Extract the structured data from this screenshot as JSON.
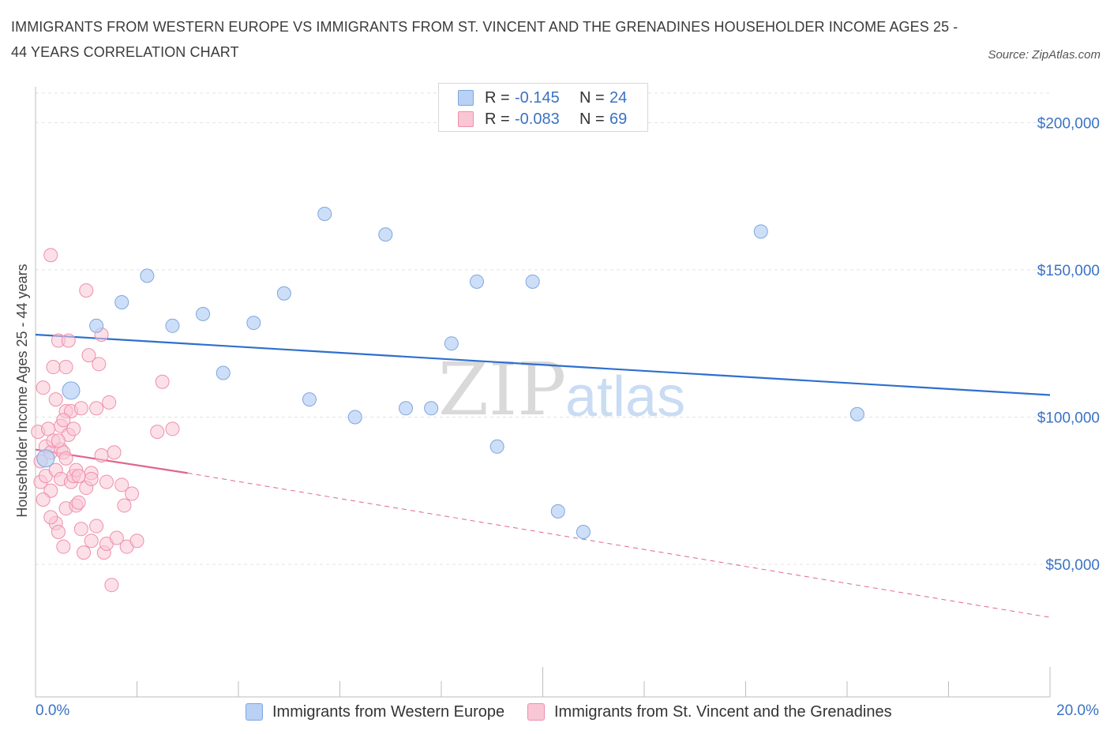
{
  "title": "IMMIGRANTS FROM WESTERN EUROPE VS IMMIGRANTS FROM ST. VINCENT AND THE GRENADINES HOUSEHOLDER INCOME AGES 25 - 44 YEARS CORRELATION CHART",
  "source": "Source: ZipAtlas.com",
  "watermark": {
    "zip": "ZIP",
    "atlas": "atlas"
  },
  "legend": {
    "rows": [
      {
        "r_label": "R =",
        "r_value": "-0.145",
        "n_label": "N =",
        "n_value": "24"
      },
      {
        "r_label": "R =",
        "r_value": "-0.083",
        "n_label": "N =",
        "n_value": "69"
      }
    ]
  },
  "colors": {
    "blue_fill": "#b8d1f5",
    "blue_stroke": "#7ea6dd",
    "blue_line": "#2e6fce",
    "pink_fill": "#f9c6d6",
    "pink_stroke": "#ee8fad",
    "pink_line": "#e06690",
    "axis_text": "#3a72c4",
    "grid": "#e3e3e3"
  },
  "chart_data": {
    "type": "scatter",
    "xlabel": "",
    "ylabel": "Householder Income Ages 25 - 44 years",
    "xlim": [
      0,
      20
    ],
    "ylim": [
      5000,
      210000
    ],
    "x_tick_labels": {
      "min": "0.0%",
      "max": "20.0%"
    },
    "y_ticks": [
      {
        "value": 50000,
        "label": "$50,000"
      },
      {
        "value": 100000,
        "label": "$100,000"
      },
      {
        "value": 150000,
        "label": "$150,000"
      },
      {
        "value": 200000,
        "label": "$200,000"
      }
    ],
    "grid": true,
    "series": [
      {
        "name": "Immigrants from Western Europe",
        "color": "blue",
        "points": [
          [
            0.2,
            86000
          ],
          [
            0.7,
            109000
          ],
          [
            1.2,
            131000
          ],
          [
            1.7,
            139000
          ],
          [
            2.2,
            148000
          ],
          [
            2.7,
            131000
          ],
          [
            3.3,
            135000
          ],
          [
            3.7,
            115000
          ],
          [
            4.3,
            132000
          ],
          [
            4.9,
            142000
          ],
          [
            5.4,
            106000
          ],
          [
            5.7,
            169000
          ],
          [
            6.3,
            100000
          ],
          [
            6.9,
            162000
          ],
          [
            7.3,
            103000
          ],
          [
            7.8,
            103000
          ],
          [
            8.2,
            125000
          ],
          [
            8.7,
            146000
          ],
          [
            9.1,
            90000
          ],
          [
            9.8,
            146000
          ],
          [
            10.3,
            68000
          ],
          [
            10.8,
            61000
          ],
          [
            14.3,
            163000
          ],
          [
            16.2,
            101000
          ]
        ],
        "trend": {
          "x": [
            0,
            20
          ],
          "y": [
            128000,
            107500
          ],
          "style": "solid"
        }
      },
      {
        "name": "Immigrants from St. Vincent and the Grenadines",
        "color": "pink",
        "points": [
          [
            0.05,
            95000
          ],
          [
            0.1,
            85000
          ],
          [
            0.1,
            78000
          ],
          [
            0.15,
            110000
          ],
          [
            0.2,
            90000
          ],
          [
            0.2,
            80000
          ],
          [
            0.25,
            96000
          ],
          [
            0.3,
            88000
          ],
          [
            0.3,
            75000
          ],
          [
            0.3,
            155000
          ],
          [
            0.35,
            117000
          ],
          [
            0.35,
            92000
          ],
          [
            0.4,
            82000
          ],
          [
            0.4,
            64000
          ],
          [
            0.4,
            106000
          ],
          [
            0.45,
            61000
          ],
          [
            0.45,
            126000
          ],
          [
            0.5,
            89000
          ],
          [
            0.5,
            97000
          ],
          [
            0.5,
            79000
          ],
          [
            0.55,
            88000
          ],
          [
            0.55,
            56000
          ],
          [
            0.6,
            117000
          ],
          [
            0.6,
            69000
          ],
          [
            0.6,
            86000
          ],
          [
            0.6,
            102000
          ],
          [
            0.65,
            94000
          ],
          [
            0.65,
            126000
          ],
          [
            0.7,
            78000
          ],
          [
            0.7,
            102000
          ],
          [
            0.75,
            96000
          ],
          [
            0.75,
            80000
          ],
          [
            0.8,
            70000
          ],
          [
            0.8,
            82000
          ],
          [
            0.85,
            71000
          ],
          [
            0.85,
            80000
          ],
          [
            0.9,
            62000
          ],
          [
            0.9,
            103000
          ],
          [
            0.95,
            54000
          ],
          [
            1.0,
            76000
          ],
          [
            1.0,
            143000
          ],
          [
            1.05,
            121000
          ],
          [
            1.1,
            81000
          ],
          [
            1.1,
            58000
          ],
          [
            1.1,
            79000
          ],
          [
            1.2,
            63000
          ],
          [
            1.2,
            103000
          ],
          [
            1.25,
            118000
          ],
          [
            1.3,
            87000
          ],
          [
            1.3,
            128000
          ],
          [
            1.35,
            54000
          ],
          [
            1.4,
            78000
          ],
          [
            1.4,
            57000
          ],
          [
            1.45,
            105000
          ],
          [
            1.5,
            43000
          ],
          [
            1.55,
            88000
          ],
          [
            1.6,
            59000
          ],
          [
            1.7,
            77000
          ],
          [
            1.75,
            70000
          ],
          [
            1.8,
            56000
          ],
          [
            1.9,
            74000
          ],
          [
            2.0,
            58000
          ],
          [
            2.4,
            95000
          ],
          [
            2.5,
            112000
          ],
          [
            2.7,
            96000
          ],
          [
            0.15,
            72000
          ],
          [
            0.3,
            66000
          ],
          [
            0.45,
            92000
          ],
          [
            0.55,
            99000
          ]
        ],
        "trend": {
          "x": [
            0,
            3.0
          ],
          "y": [
            89000,
            81000
          ],
          "style": "solid"
        },
        "trend_extension": {
          "x": [
            3.0,
            20
          ],
          "y": [
            81000,
            32000
          ],
          "style": "dashed"
        }
      }
    ]
  }
}
